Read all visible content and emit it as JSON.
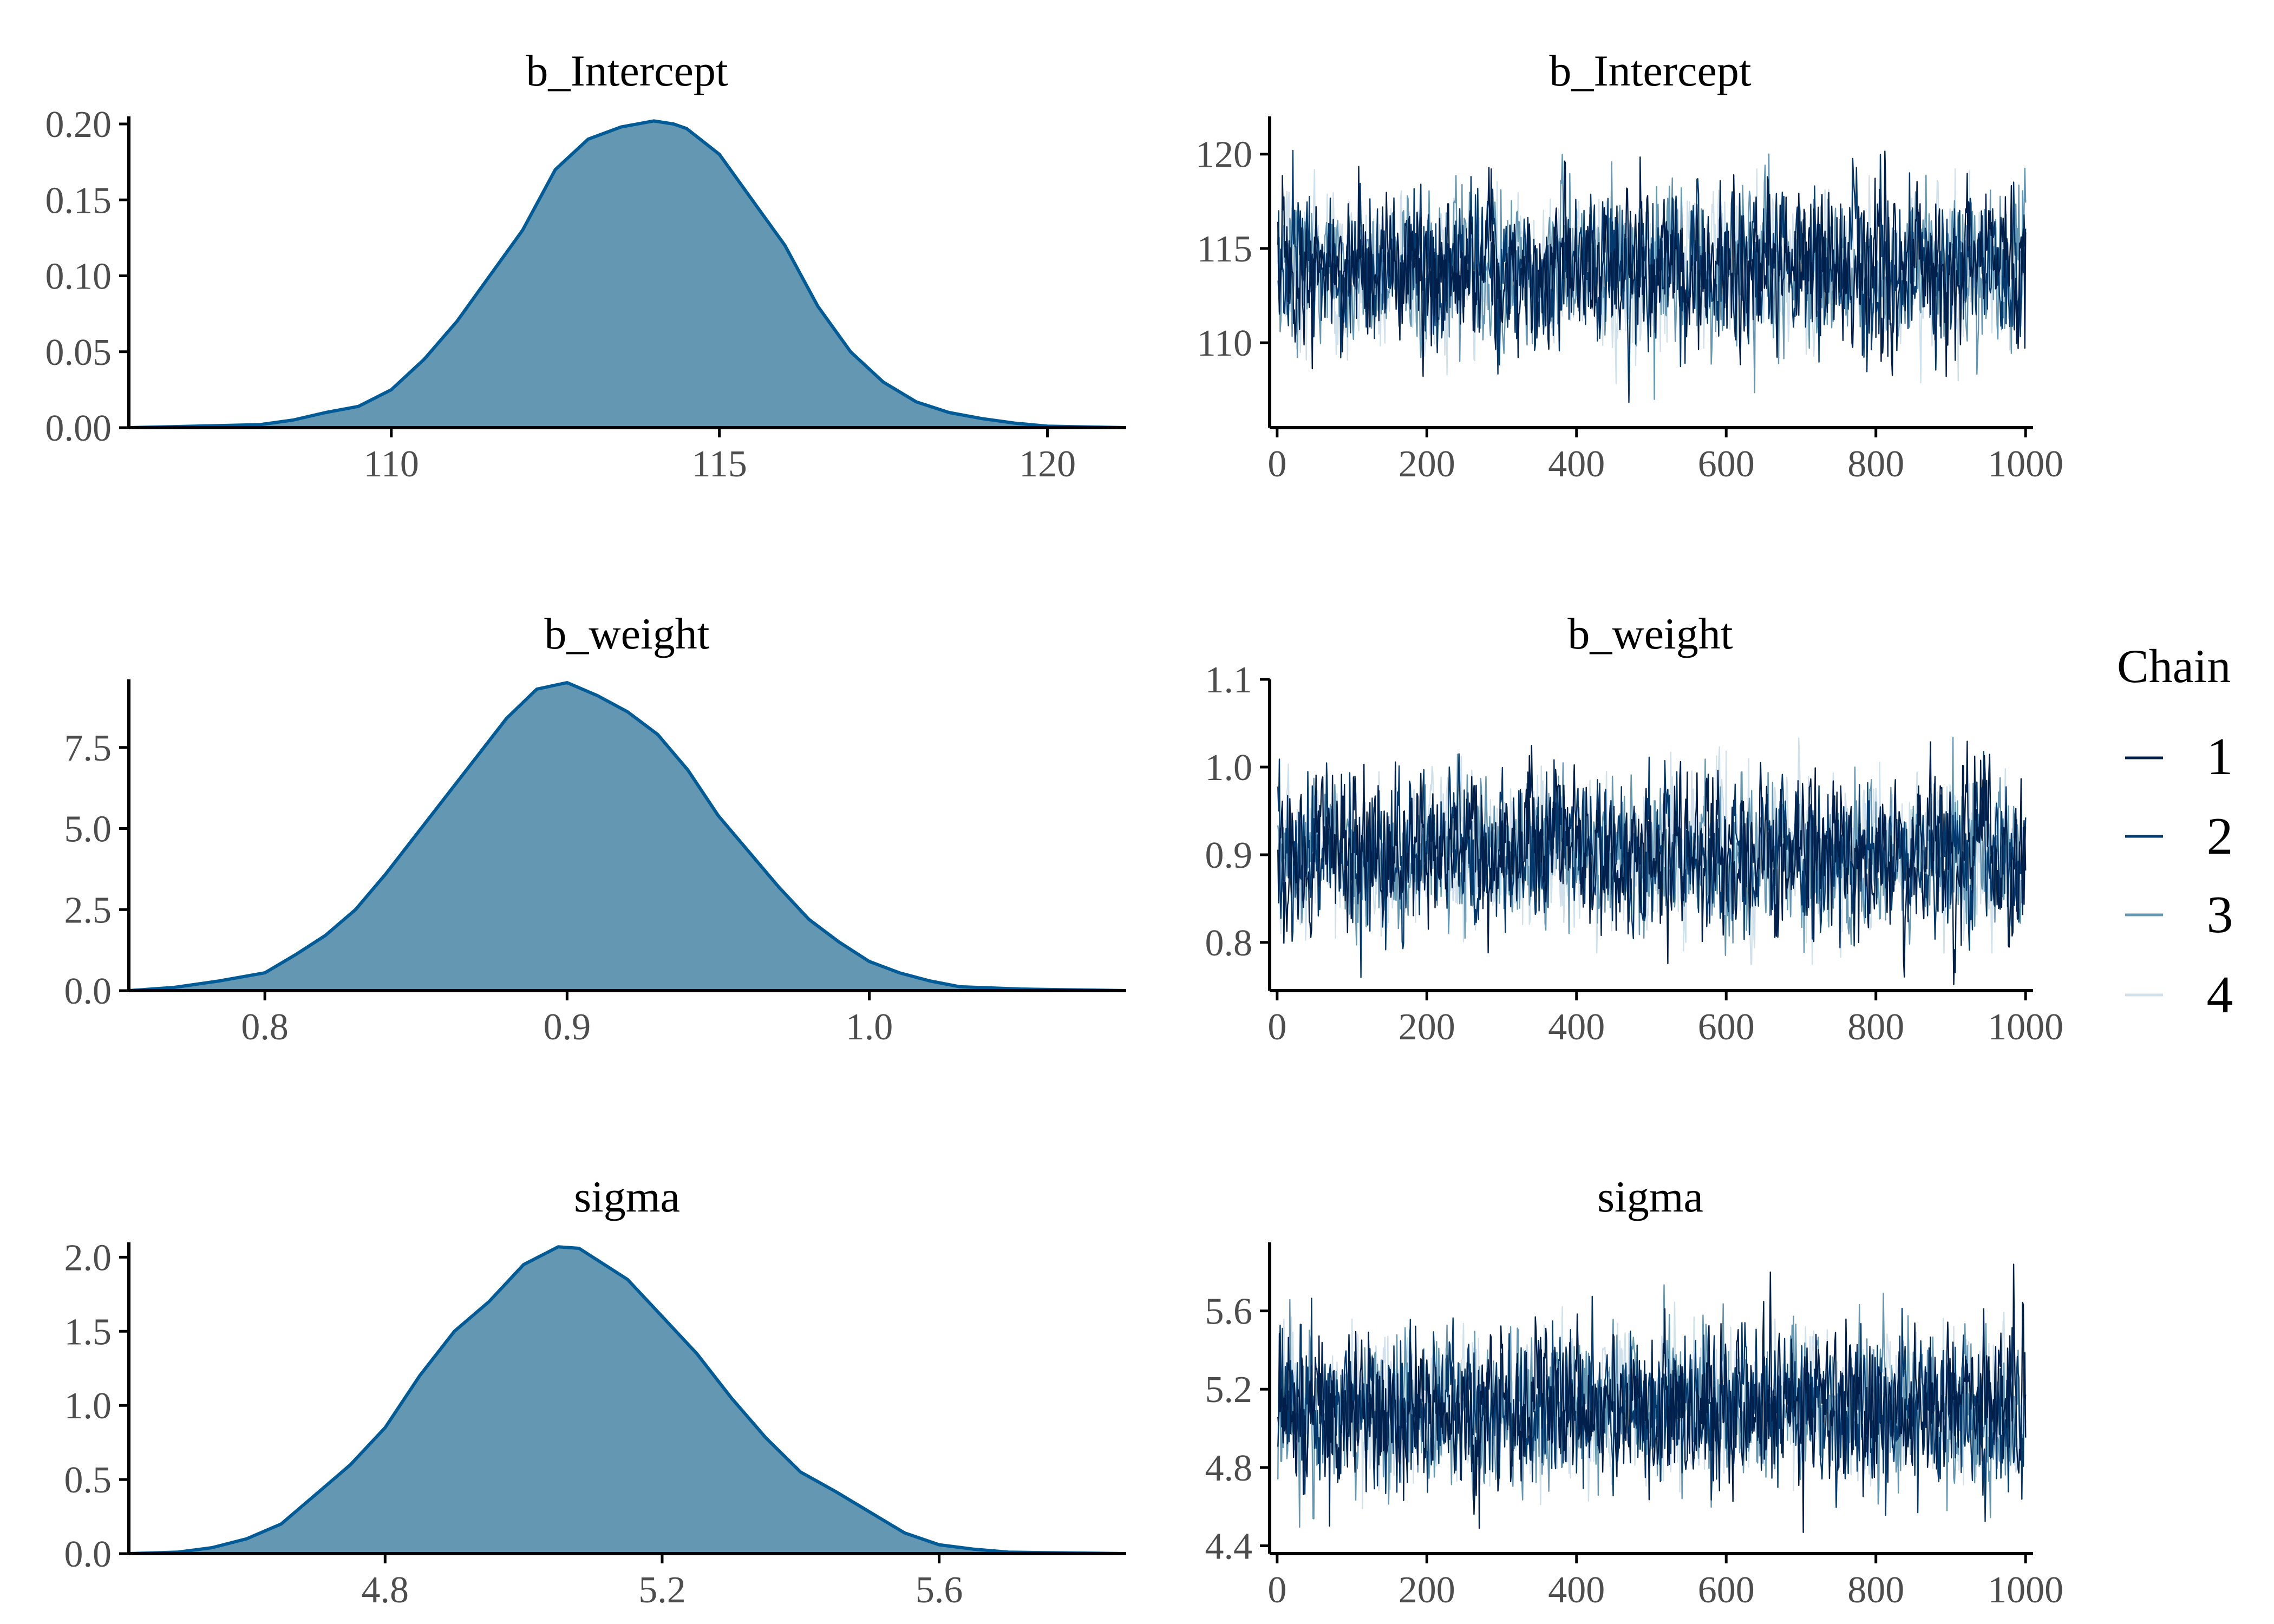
{
  "figure": {
    "legend": {
      "title": "Chain",
      "items": [
        {
          "label": "1",
          "color": "#011f4b"
        },
        {
          "label": "2",
          "color": "#03396c"
        },
        {
          "label": "3",
          "color": "#6497b1"
        },
        {
          "label": "4",
          "color": "#d1e1ec"
        }
      ]
    },
    "colors": {
      "density_fill": "#6497b1",
      "density_line": "#005b96",
      "axis": "#000000",
      "tick_text": "#4d4d4d"
    }
  },
  "chart_data": [
    {
      "type": "area",
      "title": "b_Intercept",
      "xlabel": "",
      "ylabel": "",
      "xlim": [
        106,
        121.2
      ],
      "ylim": [
        0,
        0.205
      ],
      "xticks": [
        "110",
        "115",
        "120"
      ],
      "yticks": [
        "0.00",
        "0.05",
        "0.10",
        "0.15",
        "0.20"
      ],
      "grid": false,
      "x": [
        106,
        107,
        108,
        108.5,
        109,
        109.5,
        110,
        110.5,
        111,
        111.5,
        112,
        112.5,
        113,
        113.5,
        114,
        114.3,
        114.5,
        115,
        115.5,
        116,
        116.5,
        117,
        117.5,
        118,
        118.5,
        119,
        119.5,
        120,
        121.2
      ],
      "y": [
        0.0,
        0.001,
        0.002,
        0.005,
        0.01,
        0.014,
        0.025,
        0.045,
        0.07,
        0.1,
        0.13,
        0.17,
        0.19,
        0.198,
        0.202,
        0.2,
        0.197,
        0.18,
        0.15,
        0.12,
        0.08,
        0.05,
        0.03,
        0.017,
        0.01,
        0.006,
        0.003,
        0.001,
        0.0
      ]
    },
    {
      "type": "line",
      "title": "b_Intercept",
      "xlabel": "",
      "ylabel": "",
      "xlim": [
        -10,
        1010
      ],
      "ylim": [
        105.5,
        122
      ],
      "xticks": [
        "0",
        "200",
        "400",
        "600",
        "800",
        "1000"
      ],
      "yticks": [
        "110",
        "115",
        "120"
      ],
      "grid": false,
      "iterations": 1000,
      "series": [
        {
          "name": "1",
          "mean": 114.0,
          "sd": 2.0,
          "min": 106.5,
          "max": 121.2
        },
        {
          "name": "2",
          "mean": 114.0,
          "sd": 2.0,
          "min": 106.0,
          "max": 120.2
        },
        {
          "name": "3",
          "mean": 114.0,
          "sd": 2.0,
          "min": 107.0,
          "max": 120.0
        },
        {
          "name": "4",
          "mean": 114.0,
          "sd": 2.0,
          "min": 107.5,
          "max": 119.5
        }
      ]
    },
    {
      "type": "area",
      "title": "b_weight",
      "xlabel": "",
      "ylabel": "",
      "xlim": [
        0.755,
        1.085
      ],
      "ylim": [
        0,
        9.6
      ],
      "xticks": [
        "0.8",
        "0.9",
        "1.0"
      ],
      "yticks": [
        "0.0",
        "2.5",
        "5.0",
        "7.5"
      ],
      "grid": false,
      "x": [
        0.755,
        0.77,
        0.785,
        0.8,
        0.81,
        0.82,
        0.83,
        0.84,
        0.85,
        0.86,
        0.87,
        0.88,
        0.89,
        0.9,
        0.91,
        0.92,
        0.93,
        0.94,
        0.95,
        0.96,
        0.97,
        0.98,
        0.99,
        1.0,
        1.01,
        1.02,
        1.03,
        1.05,
        1.085
      ],
      "y": [
        0.0,
        0.1,
        0.3,
        0.55,
        1.1,
        1.7,
        2.5,
        3.6,
        4.8,
        6.0,
        7.2,
        8.4,
        9.3,
        9.5,
        9.1,
        8.6,
        7.9,
        6.8,
        5.4,
        4.3,
        3.2,
        2.2,
        1.5,
        0.9,
        0.55,
        0.3,
        0.12,
        0.05,
        0.0
      ]
    },
    {
      "type": "line",
      "title": "b_weight",
      "xlabel": "",
      "ylabel": "",
      "xlim": [
        -10,
        1010
      ],
      "ylim": [
        0.745,
        1.1
      ],
      "xticks": [
        "0",
        "200",
        "400",
        "600",
        "800",
        "1000"
      ],
      "yticks": [
        "0.8",
        "0.9",
        "1.0",
        "1.1"
      ],
      "grid": false,
      "iterations": 1000,
      "series": [
        {
          "name": "1",
          "mean": 0.9,
          "sd": 0.042,
          "min": 0.75,
          "max": 1.085
        },
        {
          "name": "2",
          "mean": 0.9,
          "sd": 0.042,
          "min": 0.76,
          "max": 1.07
        },
        {
          "name": "3",
          "mean": 0.9,
          "sd": 0.042,
          "min": 0.77,
          "max": 1.05
        },
        {
          "name": "4",
          "mean": 0.9,
          "sd": 0.042,
          "min": 0.775,
          "max": 1.05
        }
      ]
    },
    {
      "type": "area",
      "title": "sigma",
      "xlabel": "",
      "ylabel": "",
      "xlim": [
        4.43,
        5.87
      ],
      "ylim": [
        0,
        2.1
      ],
      "xticks": [
        "4.8",
        "5.2",
        "5.6"
      ],
      "yticks": [
        "0.0",
        "0.5",
        "1.0",
        "1.5",
        "2.0"
      ],
      "grid": false,
      "x": [
        4.43,
        4.5,
        4.55,
        4.6,
        4.65,
        4.7,
        4.75,
        4.8,
        4.85,
        4.9,
        4.95,
        5.0,
        5.05,
        5.08,
        5.1,
        5.15,
        5.2,
        5.25,
        5.3,
        5.35,
        5.4,
        5.45,
        5.5,
        5.55,
        5.6,
        5.65,
        5.7,
        5.87
      ],
      "y": [
        0.0,
        0.01,
        0.04,
        0.1,
        0.2,
        0.4,
        0.6,
        0.85,
        1.2,
        1.5,
        1.7,
        1.95,
        2.07,
        2.06,
        2.0,
        1.85,
        1.6,
        1.35,
        1.05,
        0.78,
        0.55,
        0.42,
        0.28,
        0.14,
        0.06,
        0.03,
        0.01,
        0.0
      ]
    },
    {
      "type": "line",
      "title": "sigma",
      "xlabel": "",
      "ylabel": "",
      "xlim": [
        -10,
        1010
      ],
      "ylim": [
        4.36,
        5.95
      ],
      "xticks": [
        "0",
        "200",
        "400",
        "600",
        "800",
        "1000"
      ],
      "yticks": [
        "4.4",
        "4.8",
        "5.2",
        "5.6"
      ],
      "grid": false,
      "iterations": 1000,
      "series": [
        {
          "name": "1",
          "mean": 5.1,
          "sd": 0.19,
          "min": 4.45,
          "max": 5.9
        },
        {
          "name": "2",
          "mean": 5.1,
          "sd": 0.19,
          "min": 4.5,
          "max": 5.85
        },
        {
          "name": "3",
          "mean": 5.1,
          "sd": 0.19,
          "min": 4.4,
          "max": 5.75
        },
        {
          "name": "4",
          "mean": 5.1,
          "sd": 0.19,
          "min": 4.5,
          "max": 5.9
        }
      ]
    }
  ]
}
